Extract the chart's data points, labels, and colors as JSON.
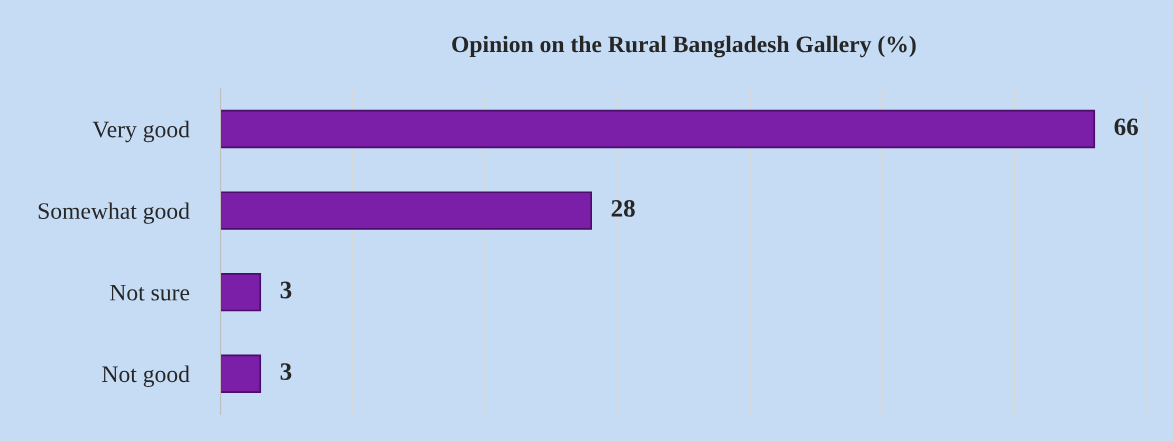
{
  "chart_data": {
    "type": "bar",
    "orientation": "horizontal",
    "title": "Opinion on the Rural Bangladesh Gallery (%)",
    "categories": [
      "Very good",
      "Somewhat good",
      "Not sure",
      "Not good"
    ],
    "values": [
      66,
      28,
      3,
      3
    ],
    "color": "#7b1fa8",
    "xlim": [
      0,
      70
    ],
    "xticks": [
      {
        "value": 0,
        "label": null
      },
      {
        "value": 10,
        "label": null
      },
      {
        "value": 20,
        "label": null
      },
      {
        "value": 30,
        "label": null
      },
      {
        "value": 40,
        "label": null
      },
      {
        "value": 50,
        "label": null
      },
      {
        "value": 60,
        "label": null
      },
      {
        "value": 70,
        "label": null
      }
    ],
    "grid": "x",
    "tick_labels": "y",
    "data_labels": true
  }
}
